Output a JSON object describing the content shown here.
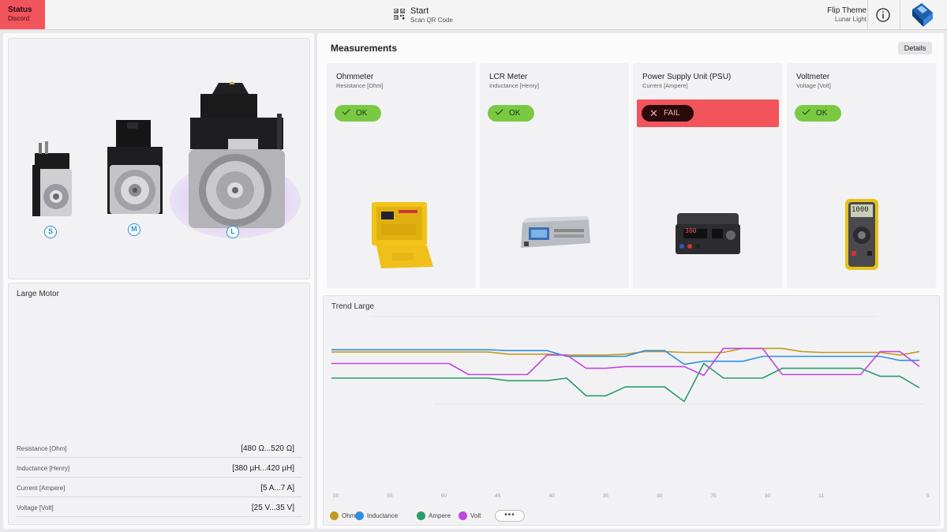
{
  "topbar": {
    "status_label": "Status",
    "status_sub": "Discord",
    "start_label": "Start",
    "start_sub": "Scan QR Code",
    "theme_label": "Flip Theme",
    "theme_sub": "Lunar Light",
    "info_icon": "info-icon",
    "logo": "brand-logo"
  },
  "motors": {
    "sizes": [
      "S",
      "M",
      "L"
    ],
    "selected": "L"
  },
  "large_motor": {
    "title": "Large Motor",
    "specs": [
      {
        "label": "Resistance [Ohm]",
        "value": "[480 Ω...520 Ω]"
      },
      {
        "label": "Inductance [Henry]",
        "value": "[380 µH...420 µH]"
      },
      {
        "label": "Current [Ampere]",
        "value": "[5 A...7 A]"
      },
      {
        "label": "Voltage [Volt]",
        "value": "[25 V...35 V]"
      }
    ]
  },
  "measurements": {
    "title": "Measurements",
    "details_label": "Details",
    "cards": [
      {
        "title": "Ohmmeter",
        "sub": "Resistance [Ohm]",
        "status": "OK"
      },
      {
        "title": "LCR Meter",
        "sub": "Inductance [Henry]",
        "status": "OK"
      },
      {
        "title": "Power Supply Unit (PSU)",
        "sub": "Current [Ampere]",
        "status": "FAIL"
      },
      {
        "title": "Voltmeter",
        "sub": "Voltage [Volt]",
        "status": "OK"
      }
    ],
    "device_display": {
      "psu": "300",
      "voltmeter": "1000"
    }
  },
  "trend": {
    "title": "Trend Large",
    "more_label": "•••",
    "colors": {
      "Ohm": "#c39a1e",
      "Inductance": "#2f8fe0",
      "Ampere": "#2a9d6b",
      "Volt": "#c246e0"
    }
  },
  "chart_data": {
    "type": "line",
    "title": "Trend Large",
    "xlabel": "",
    "ylabel": "",
    "x_tick_labels": [
      "00",
      "55",
      "50",
      "45",
      "40",
      "35",
      "30",
      "75",
      "30",
      "11",
      "",
      "5"
    ],
    "grid": false,
    "legend_placement": "bottom-left",
    "x": [
      0,
      2,
      4,
      6,
      8,
      10,
      12,
      14,
      16,
      18,
      20,
      22,
      24,
      26,
      28,
      30,
      32,
      34,
      36,
      38,
      40,
      42,
      44,
      46,
      48,
      50,
      52,
      54,
      56,
      58,
      60
    ],
    "series": [
      {
        "name": "Ohm",
        "values": [
          43,
          43,
          43,
          43,
          43,
          43,
          43,
          43,
          43,
          38,
          38,
          38,
          36,
          36,
          36,
          38,
          44,
          44,
          42,
          42,
          42,
          51,
          51,
          51,
          44,
          42,
          42,
          42,
          42,
          36,
          44
        ]
      },
      {
        "name": "Inductance",
        "values": [
          48,
          48,
          48,
          48,
          48,
          48,
          48,
          48,
          48,
          46,
          46,
          46,
          33,
          33,
          33,
          33,
          46,
          46,
          15,
          22,
          22,
          22,
          33,
          33,
          33,
          33,
          33,
          33,
          33,
          24,
          24
        ]
      },
      {
        "name": "Ampere",
        "values": [
          -16,
          -16,
          -16,
          -16,
          -16,
          -16,
          -16,
          -16,
          -16,
          -22,
          -22,
          -22,
          -16,
          -56,
          -56,
          -36,
          -36,
          -36,
          -69,
          17,
          -16,
          -16,
          -16,
          6,
          6,
          6,
          6,
          6,
          -12,
          -12,
          -38
        ]
      },
      {
        "name": "Volt",
        "values": [
          17,
          17,
          17,
          17,
          17,
          17,
          17,
          -8,
          -8,
          -8,
          -8,
          36,
          36,
          6,
          6,
          10,
          10,
          10,
          10,
          -10,
          51,
          51,
          51,
          -8,
          -8,
          -8,
          -8,
          -8,
          44,
          44,
          10
        ]
      }
    ]
  }
}
